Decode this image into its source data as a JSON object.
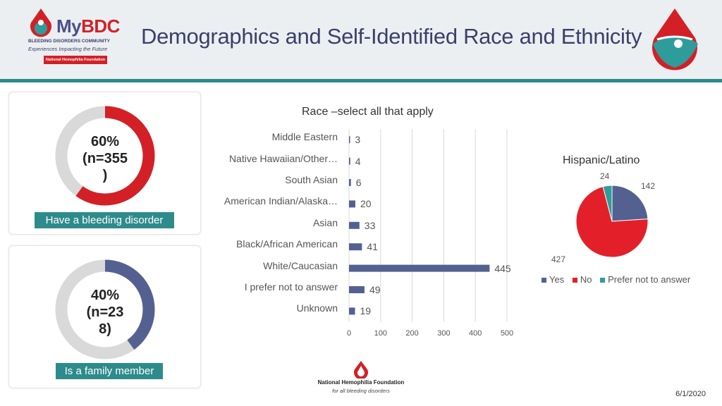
{
  "header": {
    "title": "Demographics and Self-Identified Race and Ethnicity",
    "logo": {
      "brand_my": "My",
      "brand_bdc": "BDC",
      "line1": "BLEEDING DISORDERS COMMUNITY",
      "line2": "Experiences Impacting the Future",
      "tag": "National Hemophilia Foundation"
    }
  },
  "colors": {
    "red": "#d32027",
    "navy": "#546190",
    "teal": "#2e9c9a",
    "grey": "#d9d9d9",
    "label_bg": "#2e8b8b"
  },
  "cards": [
    {
      "percent": "60%",
      "count_line1": "(n=355",
      "count_line2": ")",
      "label": "Have a bleeding disorder",
      "fraction": 0.6,
      "color": "#d32027"
    },
    {
      "percent": "40%",
      "count_line1": "(n=23",
      "count_line2": "8)",
      "label": "Is a family member",
      "fraction": 0.4,
      "color": "#546190"
    }
  ],
  "chart_data": [
    {
      "type": "bar",
      "orientation": "horizontal",
      "title": "Race –select all that apply",
      "categories": [
        "Middle Eastern",
        "Native Hawaiian/Other…",
        "South Asian",
        "American Indian/Alaska…",
        "Asian",
        "Black/African American",
        "White/Caucasian",
        "I prefer not to answer",
        "Unknown"
      ],
      "values": [
        3,
        4,
        6,
        20,
        33,
        41,
        445,
        49,
        19
      ],
      "xlim": [
        0,
        500
      ],
      "xticks": [
        "0",
        "100",
        "200",
        "300",
        "400",
        "500"
      ],
      "grid": true,
      "color": "#546190"
    },
    {
      "type": "pie",
      "title": "Hispanic/Latino",
      "categories": [
        "Yes",
        "No",
        "Prefer not to answer"
      ],
      "values": [
        142,
        427,
        24
      ],
      "colors": [
        "#546190",
        "#e3202a",
        "#2e9c9a"
      ],
      "legend": "bottom"
    }
  ],
  "footer": {
    "nhf_line1": "National Hemophilia Foundation",
    "nhf_line2": "for all bleeding disorders",
    "date": "6/1/2020"
  }
}
